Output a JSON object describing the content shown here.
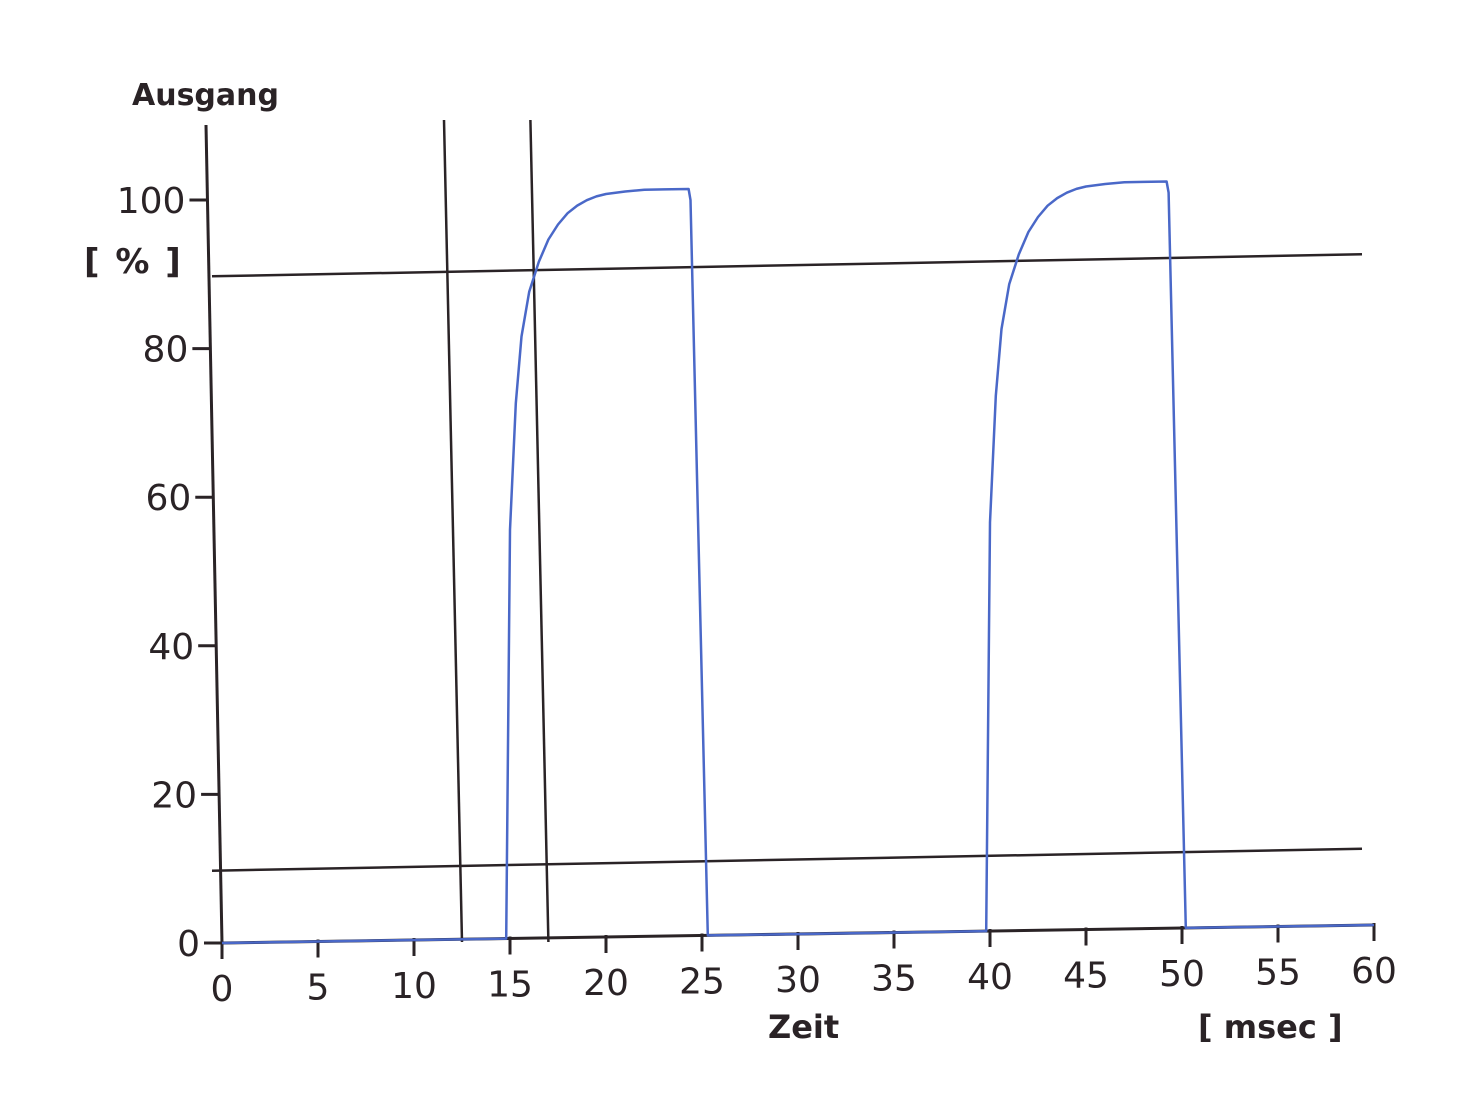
{
  "chart_data": {
    "type": "line",
    "ylabel": "Ausgang",
    "yunit": "[ % ]",
    "xlabel": "Zeit",
    "xunit": "[ msec ]",
    "xlim": [
      0,
      60
    ],
    "ylim": [
      0,
      100
    ],
    "xticks": [
      0,
      5,
      10,
      15,
      20,
      25,
      30,
      35,
      40,
      45,
      50,
      55,
      60
    ],
    "yticks": [
      0,
      20,
      40,
      60,
      80,
      100
    ],
    "grid": false,
    "reference_lines": {
      "horizontal": [
        90,
        10
      ],
      "vertical": [
        12.5,
        17
      ]
    },
    "series": [
      {
        "color": "#4a68c8",
        "x": [
          0,
          14.8,
          15.0,
          15.3,
          15.6,
          16.0,
          16.5,
          17.0,
          17.5,
          18.0,
          18.5,
          19.0,
          19.5,
          20.0,
          21.0,
          22.0,
          23.0,
          24.3,
          24.4,
          25.3,
          39.8,
          40.0,
          40.3,
          40.6,
          41.0,
          41.5,
          42.0,
          42.5,
          43.0,
          43.5,
          44.0,
          44.5,
          45.0,
          46.0,
          47.0,
          48.0,
          49.2,
          49.3,
          50.2,
          60
        ],
        "y": [
          0,
          0,
          55,
          72,
          81,
          87,
          91,
          94,
          96,
          97.5,
          98.5,
          99.2,
          99.7,
          100,
          100.3,
          100.5,
          100.5,
          100.5,
          99,
          0,
          0,
          55,
          72,
          81,
          87,
          91,
          94,
          96,
          97.5,
          98.5,
          99.2,
          99.7,
          100,
          100.3,
          100.5,
          100.5,
          100.5,
          99,
          0,
          0
        ]
      }
    ]
  }
}
